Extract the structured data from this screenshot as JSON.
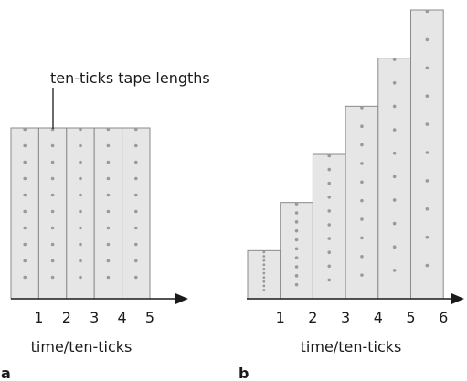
{
  "colors": {
    "bar_fill": "#e6e6e6",
    "bar_stroke": "#8a8a8a",
    "dot": "#9a9a9a",
    "axis": "#1a1a1a"
  },
  "chart_data": [
    {
      "type": "bar",
      "panel_label": "a",
      "categories": [
        "1",
        "2",
        "3",
        "4",
        "5"
      ],
      "values": [
        10,
        10,
        10,
        10,
        10
      ],
      "dots_per_tape": [
        10,
        10,
        10,
        10,
        10
      ],
      "xlabel": "time/ten-ticks",
      "ylabel": "",
      "annotation": "ten-ticks tape lengths",
      "ylim": [
        0,
        10
      ]
    },
    {
      "type": "bar",
      "panel_label": "b",
      "categories": [
        "1",
        "2",
        "3",
        "4",
        "5",
        "6"
      ],
      "values": [
        1,
        2,
        3,
        4,
        5,
        6
      ],
      "dots_per_tape": [
        10,
        10,
        10,
        10,
        10,
        10
      ],
      "xlabel": "time/ten-ticks",
      "ylabel": "",
      "annotation": "",
      "ylim": [
        0,
        6
      ]
    }
  ]
}
